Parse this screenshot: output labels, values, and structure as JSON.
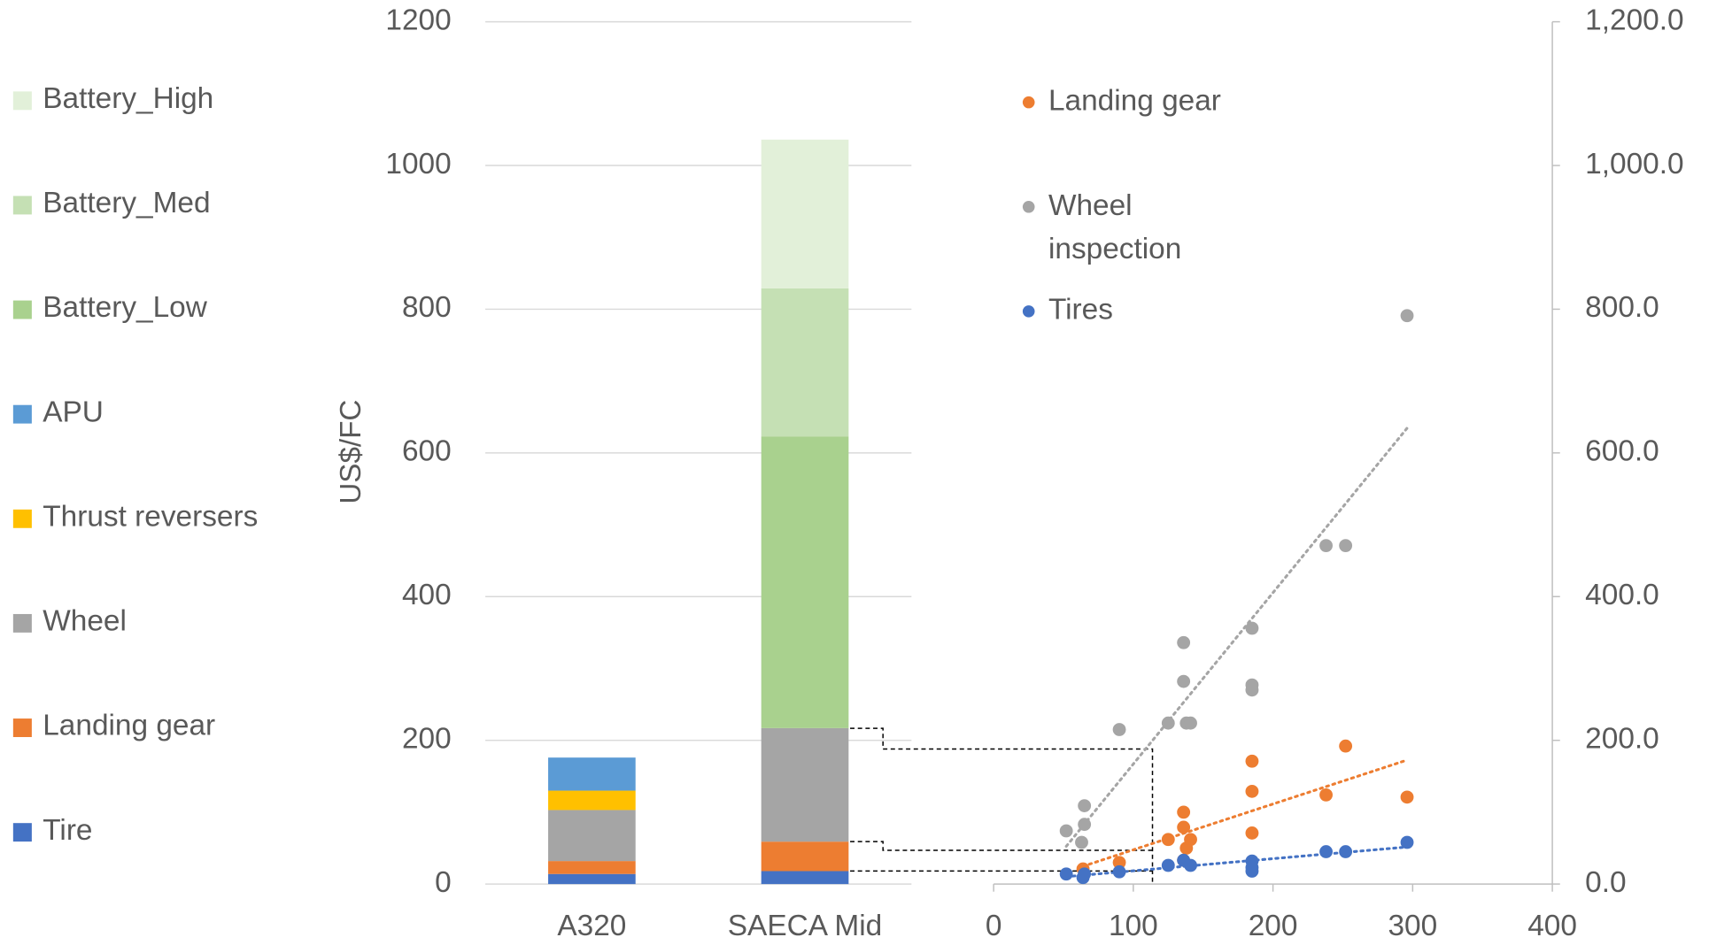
{
  "chart_data": [
    {
      "type": "bar",
      "stacked": true,
      "categories": [
        "A320",
        "SAECA Mid"
      ],
      "y_label": "US$/FC",
      "ylim": [
        0,
        1200
      ],
      "yticks": [
        0,
        200,
        400,
        600,
        800,
        1000,
        1200
      ],
      "grid": true,
      "legend": "left",
      "series": [
        {
          "name": "Tire",
          "color": "#4472c4",
          "values": [
            14,
            18
          ]
        },
        {
          "name": "Landing gear",
          "color": "#ed7d31",
          "values": [
            18,
            41
          ]
        },
        {
          "name": "Wheel",
          "color": "#a5a5a5",
          "values": [
            71,
            158
          ]
        },
        {
          "name": "Thrust reversers",
          "color": "#ffc000",
          "values": [
            27,
            null
          ]
        },
        {
          "name": "APU",
          "color": "#5b9bd5",
          "values": [
            46,
            null
          ]
        },
        {
          "name": "Battery_Low",
          "color": "#a9d18e",
          "values": [
            null,
            406
          ]
        },
        {
          "name": "Battery_Med",
          "color": "#c5e0b4",
          "values": [
            null,
            206
          ]
        },
        {
          "name": "Battery_High",
          "color": "#e2f0d9",
          "values": [
            null,
            207
          ]
        }
      ]
    },
    {
      "type": "scatter",
      "trendline": true,
      "legend": "top-left",
      "xlim": [
        0,
        400
      ],
      "xticks": [
        0,
        100,
        200,
        300,
        400
      ],
      "y2lim": [
        0,
        1200
      ],
      "y2ticks": [
        {
          "value": 0,
          "label": "0.0"
        },
        {
          "value": 200,
          "label": "200.0"
        },
        {
          "value": 400,
          "label": "400.0"
        },
        {
          "value": 600,
          "label": "600.0"
        },
        {
          "value": 800,
          "label": "800.0"
        },
        {
          "value": 1000,
          "label": "1,000.0"
        },
        {
          "value": 1200,
          "label": "1,200.0"
        }
      ],
      "series": [
        {
          "name": "Landing gear",
          "color": "#ed7d31",
          "axis": "y2",
          "x": [
            64,
            90,
            125,
            136,
            136,
            138,
            141,
            136,
            185,
            185,
            185,
            238,
            252,
            296
          ],
          "values": [
            21,
            30,
            62,
            100,
            79,
            50,
            62,
            33,
            171,
            129,
            71,
            124,
            192,
            121
          ]
        },
        {
          "name": "Wheel inspection",
          "color": "#a5a5a5",
          "axis": "y2",
          "x": [
            52,
            65,
            65,
            63,
            90,
            125,
            136,
            136,
            138,
            141,
            185,
            185,
            185,
            238,
            252,
            296
          ],
          "values": [
            74,
            109,
            83,
            58,
            215,
            224,
            336,
            282,
            224,
            224,
            356,
            277,
            270,
            471,
            471,
            791
          ]
        },
        {
          "name": "Tires",
          "color": "#4472c4",
          "axis": "y2",
          "x": [
            52,
            64,
            65,
            90,
            125,
            136,
            141,
            185,
            185,
            185,
            238,
            252,
            296
          ],
          "values": [
            14,
            9,
            14,
            17,
            26,
            33,
            26,
            23,
            18,
            32,
            45,
            45,
            58
          ]
        }
      ]
    }
  ]
}
